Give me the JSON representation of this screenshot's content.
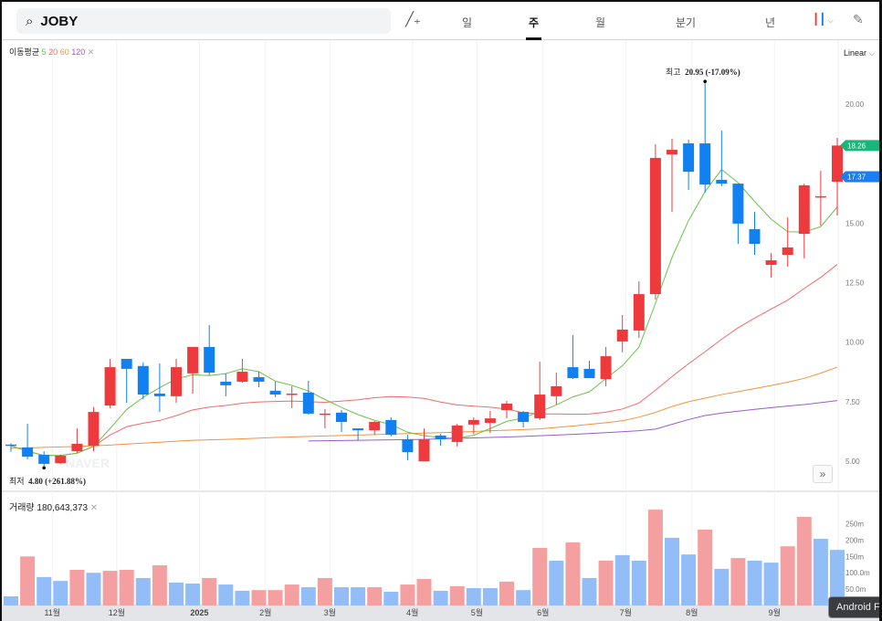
{
  "header": {
    "symbol": "JOBY",
    "tabs": [
      "일",
      "주",
      "월",
      "분기",
      "년"
    ],
    "active_tab": "주",
    "scale_mode": "Linear"
  },
  "legend": {
    "ma_label": "이동평균",
    "ma_periods": [
      "5",
      "20",
      "60",
      "120"
    ],
    "volume_label": "거래량",
    "volume_value": "180,643,373"
  },
  "annotations": {
    "high_label": "최고",
    "high_text": "20.95 (-17.09%)",
    "low_label": "최저",
    "low_text": "4.80 (+261.88%)"
  },
  "price_tags": {
    "last": "18.26",
    "second": "17.37"
  },
  "watermark": "NAVER",
  "toast": "Android F",
  "colors": {
    "up": "#ef3a3d",
    "down": "#1181f1",
    "up_vol": "#f4a0a1",
    "down_vol": "#92bdf7",
    "ma5": "#6cc24a",
    "ma20": "#f26a6a",
    "ma60": "#f5923e",
    "ma120": "#9b5bd0",
    "tag_green": "#18b67a",
    "tag_blue": "#1a7df0"
  },
  "chart_data": {
    "type": "candlestick",
    "title": "JOBY weekly",
    "ylim": [
      4.2,
      22.3
    ],
    "y_ticks": [
      "20.00",
      "15.00",
      "12.50",
      "10.00",
      "7.50",
      "5.00"
    ],
    "y_tick_values": [
      20,
      15,
      12.5,
      10,
      7.5,
      5
    ],
    "x_ticks": [
      {
        "label": "11월",
        "pos": 3.5
      },
      {
        "label": "12월",
        "pos": 7.4
      },
      {
        "label": "2025",
        "pos": 12.4
      },
      {
        "label": "2월",
        "pos": 16.4
      },
      {
        "label": "3월",
        "pos": 20.3
      },
      {
        "label": "4월",
        "pos": 25.3
      },
      {
        "label": "5월",
        "pos": 29.2
      },
      {
        "label": "6월",
        "pos": 33.2
      },
      {
        "label": "7월",
        "pos": 38.2
      },
      {
        "label": "8월",
        "pos": 42.2
      },
      {
        "label": "9월",
        "pos": 47.2
      }
    ],
    "ohlc": [
      [
        5.7,
        5.75,
        5.4,
        5.65
      ],
      [
        5.58,
        6.57,
        5.08,
        5.19
      ],
      [
        5.27,
        5.42,
        4.8,
        4.89
      ],
      [
        4.92,
        5.28,
        4.88,
        5.23
      ],
      [
        5.42,
        6.38,
        5.35,
        5.73
      ],
      [
        5.65,
        7.27,
        5.42,
        7.07
      ],
      [
        7.34,
        9.3,
        7.23,
        8.95
      ],
      [
        9.3,
        9.3,
        7.45,
        8.88
      ],
      [
        9.0,
        9.15,
        7.61,
        7.8
      ],
      [
        7.84,
        9.11,
        7.07,
        7.73
      ],
      [
        7.73,
        9.3,
        7.45,
        8.95
      ],
      [
        8.69,
        9.8,
        7.84,
        9.8
      ],
      [
        9.8,
        10.72,
        8.61,
        8.72
      ],
      [
        8.34,
        8.69,
        7.73,
        8.19
      ],
      [
        8.34,
        9.3,
        8.3,
        8.76
      ],
      [
        8.53,
        8.76,
        8.11,
        8.34
      ],
      [
        7.96,
        8.34,
        7.69,
        7.8
      ],
      [
        7.8,
        8.15,
        7.23,
        7.84
      ],
      [
        7.88,
        8.38,
        6.96,
        7.0
      ],
      [
        6.98,
        7.19,
        6.38,
        7.0
      ],
      [
        7.04,
        7.15,
        6.23,
        6.65
      ],
      [
        6.38,
        6.38,
        5.88,
        6.3
      ],
      [
        6.3,
        6.69,
        6.11,
        6.65
      ],
      [
        6.73,
        6.84,
        6.04,
        6.11
      ],
      [
        5.92,
        6.11,
        5.04,
        5.38
      ],
      [
        5.0,
        6.38,
        5.0,
        5.92
      ],
      [
        6.08,
        6.15,
        5.65,
        5.92
      ],
      [
        5.81,
        6.57,
        5.62,
        6.5
      ],
      [
        6.54,
        6.84,
        6.15,
        6.73
      ],
      [
        6.61,
        7.11,
        6.19,
        6.8
      ],
      [
        7.15,
        7.53,
        6.8,
        7.42
      ],
      [
        7.07,
        7.11,
        6.42,
        6.65
      ],
      [
        6.8,
        9.18,
        6.73,
        7.8
      ],
      [
        7.73,
        8.72,
        7.38,
        8.15
      ],
      [
        8.95,
        10.3,
        8.45,
        8.49
      ],
      [
        8.88,
        9.22,
        8.49,
        8.49
      ],
      [
        8.45,
        9.8,
        8.15,
        9.41
      ],
      [
        10.03,
        11.14,
        9.57,
        10.53
      ],
      [
        10.49,
        12.56,
        10.18,
        12.02
      ],
      [
        12.02,
        18.31,
        11.79,
        17.74
      ],
      [
        17.89,
        18.54,
        15.47,
        18.08
      ],
      [
        18.35,
        18.5,
        16.39,
        17.16
      ],
      [
        18.35,
        20.95,
        16.28,
        16.62
      ],
      [
        16.82,
        18.89,
        16.55,
        16.66
      ],
      [
        16.66,
        16.66,
        14.13,
        14.98
      ],
      [
        14.75,
        15.47,
        13.67,
        14.13
      ],
      [
        13.25,
        13.75,
        12.71,
        13.44
      ],
      [
        13.67,
        15.24,
        13.17,
        13.98
      ],
      [
        14.55,
        16.66,
        13.52,
        16.59
      ],
      [
        16.13,
        17.2,
        14.9,
        16.13
      ],
      [
        16.74,
        18.58,
        15.32,
        18.26
      ]
    ],
    "ma60": [
      5.55,
      5.56,
      5.58,
      5.6,
      5.62,
      5.65,
      5.68,
      5.72,
      5.76,
      5.8,
      5.84,
      5.88,
      5.9,
      5.92,
      5.94,
      5.97,
      6.0,
      6.02,
      6.04,
      6.06,
      6.08,
      6.1,
      6.12,
      6.14,
      6.16,
      6.18,
      6.2,
      6.22,
      6.25,
      6.28,
      6.3,
      6.33,
      6.36,
      6.42,
      6.48,
      6.55,
      6.62,
      6.7,
      6.85,
      7.05,
      7.3,
      7.5,
      7.65,
      7.8,
      7.92,
      8.05,
      8.18,
      8.32,
      8.48,
      8.7,
      8.95
    ],
    "ma120": [
      null,
      null,
      null,
      null,
      null,
      null,
      null,
      null,
      null,
      null,
      null,
      null,
      null,
      null,
      null,
      null,
      null,
      null,
      5.85,
      5.86,
      5.87,
      5.88,
      5.89,
      5.9,
      5.91,
      5.92,
      5.94,
      5.96,
      5.98,
      6.0,
      6.02,
      6.04,
      6.07,
      6.1,
      6.13,
      6.16,
      6.2,
      6.24,
      6.28,
      6.35,
      6.55,
      6.75,
      6.92,
      7.02,
      7.1,
      7.18,
      7.25,
      7.32,
      7.38,
      7.46,
      7.55
    ],
    "volume_m": [
      28,
      150,
      87,
      75,
      109,
      100,
      106,
      109,
      84,
      123,
      70,
      67,
      84,
      64,
      45,
      47,
      47,
      64,
      56,
      84,
      56,
      56,
      56,
      42,
      64,
      81,
      45,
      59,
      53,
      53,
      73,
      47,
      176,
      137,
      193,
      84,
      137,
      154,
      137,
      293,
      207,
      156,
      232,
      112,
      145,
      137,
      131,
      181,
      271,
      204,
      170
    ],
    "volume_dir": [
      "d",
      "u",
      "d",
      "d",
      "u",
      "d",
      "u",
      "u",
      "d",
      "u",
      "d",
      "d",
      "u",
      "d",
      "d",
      "u",
      "u",
      "u",
      "d",
      "u",
      "d",
      "d",
      "u",
      "d",
      "u",
      "u",
      "d",
      "u",
      "d",
      "d",
      "u",
      "d",
      "u",
      "d",
      "u",
      "d",
      "u",
      "d",
      "d",
      "u",
      "d",
      "d",
      "u",
      "d",
      "u",
      "d",
      "d",
      "u",
      "u",
      "d",
      "d"
    ],
    "volume_ticks": [
      "250m",
      "200m",
      "150m",
      "100.0m",
      "50.0m"
    ],
    "volume_tick_values": [
      250,
      200,
      150,
      100,
      50
    ]
  }
}
